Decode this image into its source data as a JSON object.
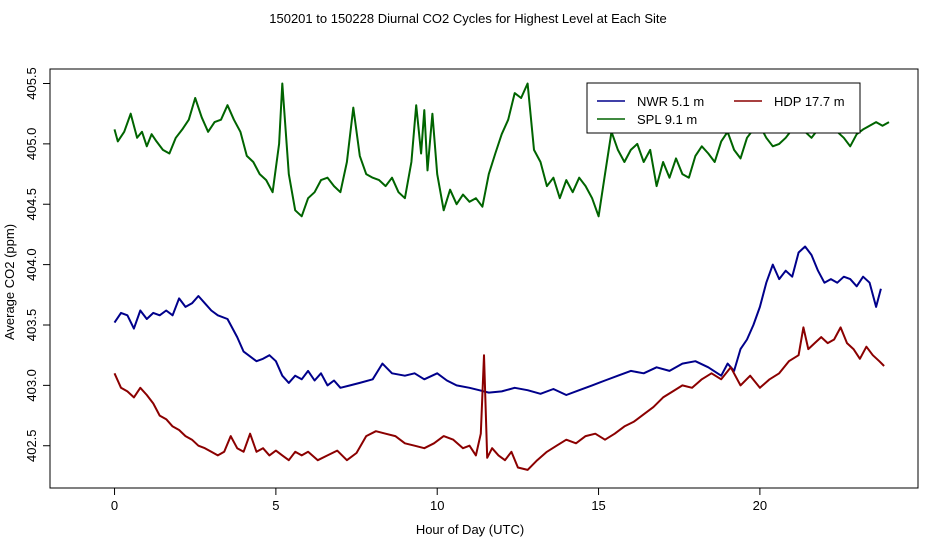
{
  "chart_data": {
    "type": "line",
    "title": "150201  to  150228 Diurnal CO2 Cycles for Highest Level at Each Site",
    "xlabel": "Hour of Day (UTC)",
    "ylabel": "Average CO2 (ppm)",
    "xlim": [
      -2.0,
      24.9
    ],
    "ylim": [
      402.15,
      405.62
    ],
    "xticks": [
      0,
      5,
      10,
      15,
      20
    ],
    "xtick_labels": [
      "0",
      "5",
      "10",
      "15",
      "20"
    ],
    "yticks": [
      402.5,
      403.0,
      403.5,
      404.0,
      404.5,
      405.0,
      405.5
    ],
    "ytick_labels": [
      "402.5",
      "403.0",
      "403.5",
      "404.0",
      "404.5",
      "405.0",
      "405.5"
    ],
    "grid": false,
    "legend": {
      "position": "top-right",
      "entries": [
        {
          "label": "NWR   5.1 m",
          "color": "#00008b"
        },
        {
          "label": "HDP   17.7 m",
          "color": "#8b0000"
        },
        {
          "label": "SPL   9.1 m",
          "color": "#006400"
        }
      ]
    },
    "series": [
      {
        "name": "NWR   5.1 m",
        "color": "#00008b",
        "x": [
          0.0,
          0.2,
          0.4,
          0.6,
          0.8,
          1.0,
          1.2,
          1.4,
          1.6,
          1.8,
          2.0,
          2.2,
          2.4,
          2.6,
          2.8,
          3.0,
          3.2,
          3.5,
          3.8,
          4.0,
          4.2,
          4.4,
          4.6,
          4.8,
          5.0,
          5.2,
          5.4,
          5.6,
          5.8,
          6.0,
          6.2,
          6.4,
          6.6,
          6.8,
          7.0,
          7.3,
          7.6,
          8.0,
          8.3,
          8.6,
          9.0,
          9.3,
          9.6,
          10.0,
          10.3,
          10.6,
          11.0,
          11.3,
          11.6,
          12.0,
          12.4,
          12.8,
          13.2,
          13.6,
          14.0,
          14.4,
          14.8,
          15.2,
          15.6,
          16.0,
          16.4,
          16.8,
          17.2,
          17.6,
          18.0,
          18.4,
          18.8,
          19.0,
          19.2,
          19.4,
          19.6,
          19.8,
          20.0,
          20.2,
          20.4,
          20.6,
          20.8,
          21.0,
          21.2,
          21.4,
          21.6,
          21.8,
          22.0,
          22.2,
          22.4,
          22.6,
          22.8,
          23.0,
          23.2,
          23.4,
          23.6,
          23.75
        ],
        "values": [
          403.52,
          403.6,
          403.58,
          403.47,
          403.62,
          403.55,
          403.6,
          403.58,
          403.62,
          403.58,
          403.72,
          403.65,
          403.68,
          403.74,
          403.68,
          403.62,
          403.58,
          403.55,
          403.4,
          403.28,
          403.24,
          403.2,
          403.22,
          403.25,
          403.2,
          403.08,
          403.02,
          403.08,
          403.05,
          403.12,
          403.04,
          403.1,
          403.0,
          403.04,
          402.98,
          403.0,
          403.02,
          403.05,
          403.18,
          403.1,
          403.08,
          403.1,
          403.05,
          403.1,
          403.04,
          403.0,
          402.98,
          402.96,
          402.94,
          402.95,
          402.98,
          402.96,
          402.93,
          402.97,
          402.92,
          402.96,
          403.0,
          403.04,
          403.08,
          403.12,
          403.1,
          403.15,
          403.12,
          403.18,
          403.2,
          403.15,
          403.08,
          403.18,
          403.12,
          403.3,
          403.38,
          403.5,
          403.65,
          403.85,
          404.0,
          403.88,
          403.95,
          403.9,
          404.1,
          404.15,
          404.08,
          403.95,
          403.85,
          403.88,
          403.85,
          403.9,
          403.88,
          403.82,
          403.9,
          403.85,
          403.65,
          403.8
        ]
      },
      {
        "name": "HDP   17.7 m",
        "color": "#8b0000",
        "x": [
          0.0,
          0.2,
          0.4,
          0.6,
          0.8,
          1.0,
          1.2,
          1.4,
          1.6,
          1.8,
          2.0,
          2.2,
          2.4,
          2.6,
          2.8,
          3.0,
          3.2,
          3.4,
          3.6,
          3.8,
          4.0,
          4.2,
          4.4,
          4.6,
          4.8,
          5.0,
          5.2,
          5.4,
          5.6,
          5.8,
          6.0,
          6.3,
          6.6,
          6.9,
          7.2,
          7.5,
          7.8,
          8.1,
          8.4,
          8.7,
          9.0,
          9.3,
          9.6,
          9.9,
          10.2,
          10.5,
          10.8,
          11.0,
          11.2,
          11.35,
          11.45,
          11.55,
          11.7,
          11.9,
          12.1,
          12.3,
          12.5,
          12.8,
          13.1,
          13.4,
          13.7,
          14.0,
          14.3,
          14.6,
          14.9,
          15.2,
          15.5,
          15.8,
          16.1,
          16.4,
          16.7,
          17.0,
          17.3,
          17.6,
          17.9,
          18.2,
          18.5,
          18.8,
          19.1,
          19.4,
          19.7,
          20.0,
          20.3,
          20.6,
          20.9,
          21.2,
          21.35,
          21.5,
          21.7,
          21.9,
          22.1,
          22.3,
          22.5,
          22.7,
          22.9,
          23.1,
          23.3,
          23.5,
          23.7,
          23.85
        ],
        "values": [
          403.1,
          402.98,
          402.95,
          402.9,
          402.98,
          402.92,
          402.85,
          402.75,
          402.72,
          402.66,
          402.63,
          402.58,
          402.55,
          402.5,
          402.48,
          402.45,
          402.42,
          402.45,
          402.58,
          402.48,
          402.45,
          402.6,
          402.45,
          402.48,
          402.42,
          402.46,
          402.42,
          402.38,
          402.45,
          402.42,
          402.45,
          402.38,
          402.42,
          402.46,
          402.38,
          402.44,
          402.58,
          402.62,
          402.6,
          402.58,
          402.52,
          402.5,
          402.48,
          402.52,
          402.58,
          402.55,
          402.48,
          402.5,
          402.42,
          402.6,
          403.25,
          402.4,
          402.48,
          402.42,
          402.38,
          402.45,
          402.32,
          402.3,
          402.38,
          402.45,
          402.5,
          402.55,
          402.52,
          402.58,
          402.6,
          402.55,
          402.6,
          402.66,
          402.7,
          402.76,
          402.82,
          402.9,
          402.95,
          403.0,
          402.98,
          403.05,
          403.1,
          403.05,
          403.15,
          403.0,
          403.08,
          402.98,
          403.05,
          403.1,
          403.2,
          403.25,
          403.48,
          403.3,
          403.35,
          403.4,
          403.35,
          403.38,
          403.48,
          403.35,
          403.3,
          403.22,
          403.32,
          403.25,
          403.2,
          403.16
        ]
      },
      {
        "name": "SPL   9.1 m",
        "color": "#006400",
        "x": [
          0.0,
          0.1,
          0.3,
          0.5,
          0.7,
          0.85,
          1.0,
          1.15,
          1.3,
          1.5,
          1.7,
          1.9,
          2.1,
          2.3,
          2.5,
          2.7,
          2.9,
          3.1,
          3.3,
          3.5,
          3.7,
          3.9,
          4.1,
          4.3,
          4.5,
          4.7,
          4.9,
          5.1,
          5.2,
          5.4,
          5.6,
          5.8,
          6.0,
          6.2,
          6.4,
          6.6,
          6.8,
          7.0,
          7.2,
          7.4,
          7.6,
          7.8,
          8.0,
          8.2,
          8.4,
          8.6,
          8.8,
          9.0,
          9.2,
          9.35,
          9.5,
          9.6,
          9.7,
          9.85,
          10.0,
          10.2,
          10.4,
          10.6,
          10.8,
          11.0,
          11.2,
          11.4,
          11.6,
          11.8,
          12.0,
          12.2,
          12.4,
          12.6,
          12.8,
          13.0,
          13.2,
          13.4,
          13.6,
          13.8,
          14.0,
          14.2,
          14.4,
          14.6,
          14.8,
          15.0,
          15.2,
          15.4,
          15.6,
          15.8,
          16.0,
          16.2,
          16.4,
          16.6,
          16.8,
          17.0,
          17.2,
          17.4,
          17.6,
          17.8,
          18.0,
          18.2,
          18.4,
          18.6,
          18.8,
          19.0,
          19.2,
          19.4,
          19.6,
          19.8,
          20.0,
          20.2,
          20.4,
          20.6,
          20.8,
          21.0,
          21.2,
          21.4,
          21.6,
          21.8,
          22.0,
          22.2,
          22.4,
          22.6,
          22.8,
          23.0,
          23.2,
          23.4,
          23.6,
          23.8,
          24.0
        ],
        "values": [
          405.12,
          405.02,
          405.1,
          405.25,
          405.05,
          405.1,
          404.98,
          405.08,
          405.02,
          404.95,
          404.92,
          405.05,
          405.12,
          405.2,
          405.38,
          405.22,
          405.1,
          405.18,
          405.2,
          405.32,
          405.2,
          405.1,
          404.9,
          404.85,
          404.75,
          404.7,
          404.6,
          405.0,
          405.5,
          404.75,
          404.45,
          404.4,
          404.55,
          404.6,
          404.7,
          404.72,
          404.65,
          404.6,
          404.85,
          405.3,
          404.9,
          404.75,
          404.72,
          404.7,
          404.65,
          404.72,
          404.6,
          404.55,
          404.85,
          405.32,
          404.92,
          405.28,
          404.78,
          405.25,
          404.75,
          404.45,
          404.62,
          404.5,
          404.58,
          404.52,
          404.55,
          404.48,
          404.75,
          404.92,
          405.08,
          405.2,
          405.42,
          405.38,
          405.5,
          404.95,
          404.85,
          404.65,
          404.72,
          404.55,
          404.7,
          404.6,
          404.72,
          404.65,
          404.55,
          404.4,
          404.75,
          405.1,
          404.95,
          404.85,
          404.95,
          405.0,
          404.85,
          404.95,
          404.65,
          404.85,
          404.72,
          404.88,
          404.75,
          404.72,
          404.9,
          404.98,
          404.92,
          404.85,
          405.02,
          405.1,
          404.95,
          404.88,
          405.05,
          405.12,
          405.15,
          405.05,
          404.98,
          405.0,
          405.05,
          405.12,
          405.15,
          405.1,
          405.05,
          405.12,
          405.15,
          405.12,
          405.1,
          405.05,
          404.98,
          405.08,
          405.12,
          405.15,
          405.18,
          405.15,
          405.18
        ]
      }
    ]
  }
}
